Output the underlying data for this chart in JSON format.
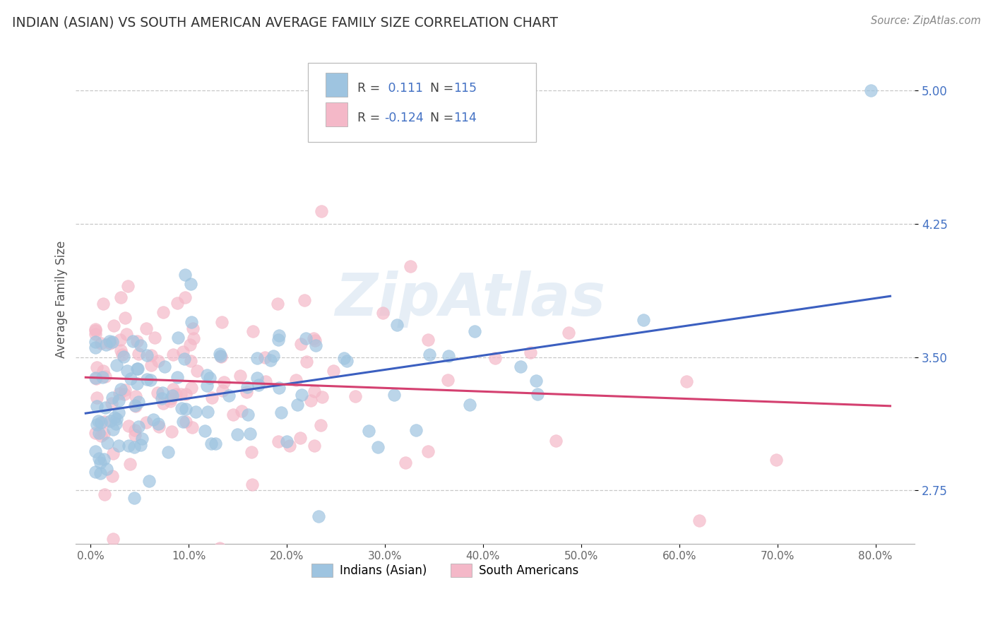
{
  "title": "INDIAN (ASIAN) VS SOUTH AMERICAN AVERAGE FAMILY SIZE CORRELATION CHART",
  "source": "Source: ZipAtlas.com",
  "ylabel": "Average Family Size",
  "xlabel_ticks": [
    "0.0%",
    "10.0%",
    "20.0%",
    "30.0%",
    "40.0%",
    "50.0%",
    "60.0%",
    "70.0%",
    "80.0%"
  ],
  "xlabel_vals": [
    0.0,
    0.1,
    0.2,
    0.3,
    0.4,
    0.5,
    0.6,
    0.7,
    0.8
  ],
  "ylim": [
    2.45,
    5.2
  ],
  "xlim": [
    -0.015,
    0.84
  ],
  "yticks": [
    2.75,
    3.5,
    4.25,
    5.0
  ],
  "r_indian": 0.111,
  "n_indian": 115,
  "r_south": -0.124,
  "n_south": 114,
  "color_indian": "#9ec4e0",
  "color_south": "#f4b8c8",
  "color_indian_line": "#3b5fc0",
  "color_south_line": "#d44070",
  "legend_label_indian": "Indians (Asian)",
  "legend_label_south": "South Americans",
  "watermark": "ZipAtlas",
  "title_color": "#333333",
  "axis_label_color": "#4472C4",
  "ylabel_color": "#555555",
  "background_color": "#ffffff",
  "grid_color": "#c8c8c8",
  "legend_r_color": "#4472C4",
  "legend_n_color": "#4472C4",
  "legend_label_color": "#333333"
}
